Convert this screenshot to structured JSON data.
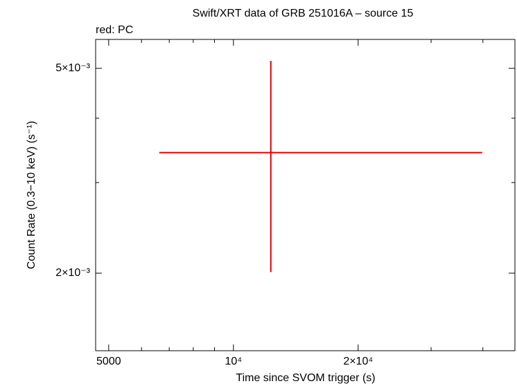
{
  "chart_data": {
    "type": "errorbar",
    "title": "Swift/XRT data of GRB 251016A – source 15",
    "subtitle": "red: PC",
    "x_label": "Time since SVOM trigger (s)",
    "y_label": "Count Rate (0.3−10 keV) (s⁻¹)",
    "x_log": true,
    "y_log": true,
    "xlim": [
      4650,
      47800
    ],
    "ylim": [
      0.001414,
      0.00569
    ],
    "xticks": [
      5000,
      {
        "value": 10000,
        "label": "10⁴"
      },
      {
        "value": 20000,
        "label": "2×10⁴"
      }
    ],
    "xminorticks": [
      6000,
      7000,
      8000,
      9000,
      30000,
      40000
    ],
    "yticks": [
      {
        "value": 0.002,
        "label": "2×10⁻³"
      },
      {
        "value": 0.005,
        "label": "5×10⁻³"
      }
    ],
    "yminorticks": [
      0.003,
      0.004
    ],
    "series": [
      {
        "name": "PC",
        "color": "#e00000",
        "x": [
          12310
        ],
        "xerr_minus": [
          5688
        ],
        "xerr_plus": [
          27530
        ],
        "values": [
          0.00343
        ],
        "yerr_minus": [
          0.00142
        ],
        "yerr_plus": [
          0.00174
        ]
      }
    ]
  }
}
